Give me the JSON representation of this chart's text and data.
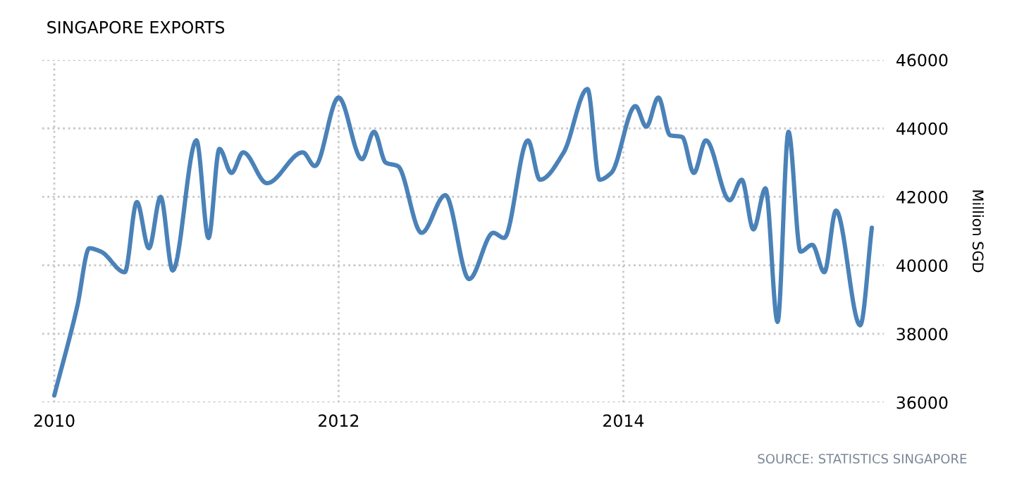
{
  "chart_data": {
    "type": "line",
    "title": "SINGAPORE EXPORTS",
    "ylabel": "Million SGD",
    "annotations": [
      "SOURCE: STATISTICS SINGAPORE"
    ],
    "x": [
      "2010-01",
      "2010-03",
      "2010-04",
      "2010-05",
      "2010-07",
      "2010-08",
      "2010-09",
      "2010-10",
      "2010-11",
      "2011-01",
      "2011-02",
      "2011-03",
      "2011-04",
      "2011-05",
      "2011-07",
      "2011-10",
      "2011-11",
      "2012-01",
      "2012-03",
      "2012-04",
      "2012-05",
      "2012-06",
      "2012-08",
      "2012-10",
      "2012-12",
      "2013-02",
      "2013-03",
      "2013-05",
      "2013-06",
      "2013-08",
      "2013-10",
      "2013-11",
      "2013-12",
      "2014-02",
      "2014-03",
      "2014-04",
      "2014-05",
      "2014-06",
      "2014-07",
      "2014-08",
      "2014-10",
      "2014-11",
      "2014-12",
      "2015-01",
      "2015-02",
      "2015-03",
      "2015-04",
      "2015-05",
      "2015-06",
      "2015-07",
      "2015-09",
      "2015-10"
    ],
    "series": [
      {
        "color": "#4a82b8",
        "values": [
          36200,
          38800,
          40500,
          40400,
          39800,
          41850,
          40500,
          42000,
          39850,
          43650,
          40800,
          43400,
          42700,
          43300,
          42400,
          43300,
          42900,
          44900,
          43100,
          43900,
          43000,
          42900,
          40950,
          42050,
          39600,
          40950,
          40800,
          43650,
          42500,
          43300,
          45150,
          42500,
          42700,
          44650,
          44050,
          44900,
          43800,
          43750,
          42700,
          43650,
          41900,
          42500,
          41050,
          42250,
          38350,
          43900,
          40400,
          40600,
          39800,
          41600,
          38250,
          41100
        ]
      }
    ],
    "xlim": [
      "2009-12-01",
      "2015-11-01"
    ],
    "xticks": [
      {
        "value": "2010",
        "label": "2010"
      },
      {
        "value": "2012",
        "label": "2012"
      },
      {
        "value": "2014",
        "label": "2014"
      }
    ],
    "ylim": [
      36000,
      46000
    ],
    "yticks": [
      36000,
      38000,
      40000,
      42000,
      44000,
      46000
    ],
    "grid": true,
    "legend": false,
    "marker": "none",
    "line_style": "solid"
  }
}
